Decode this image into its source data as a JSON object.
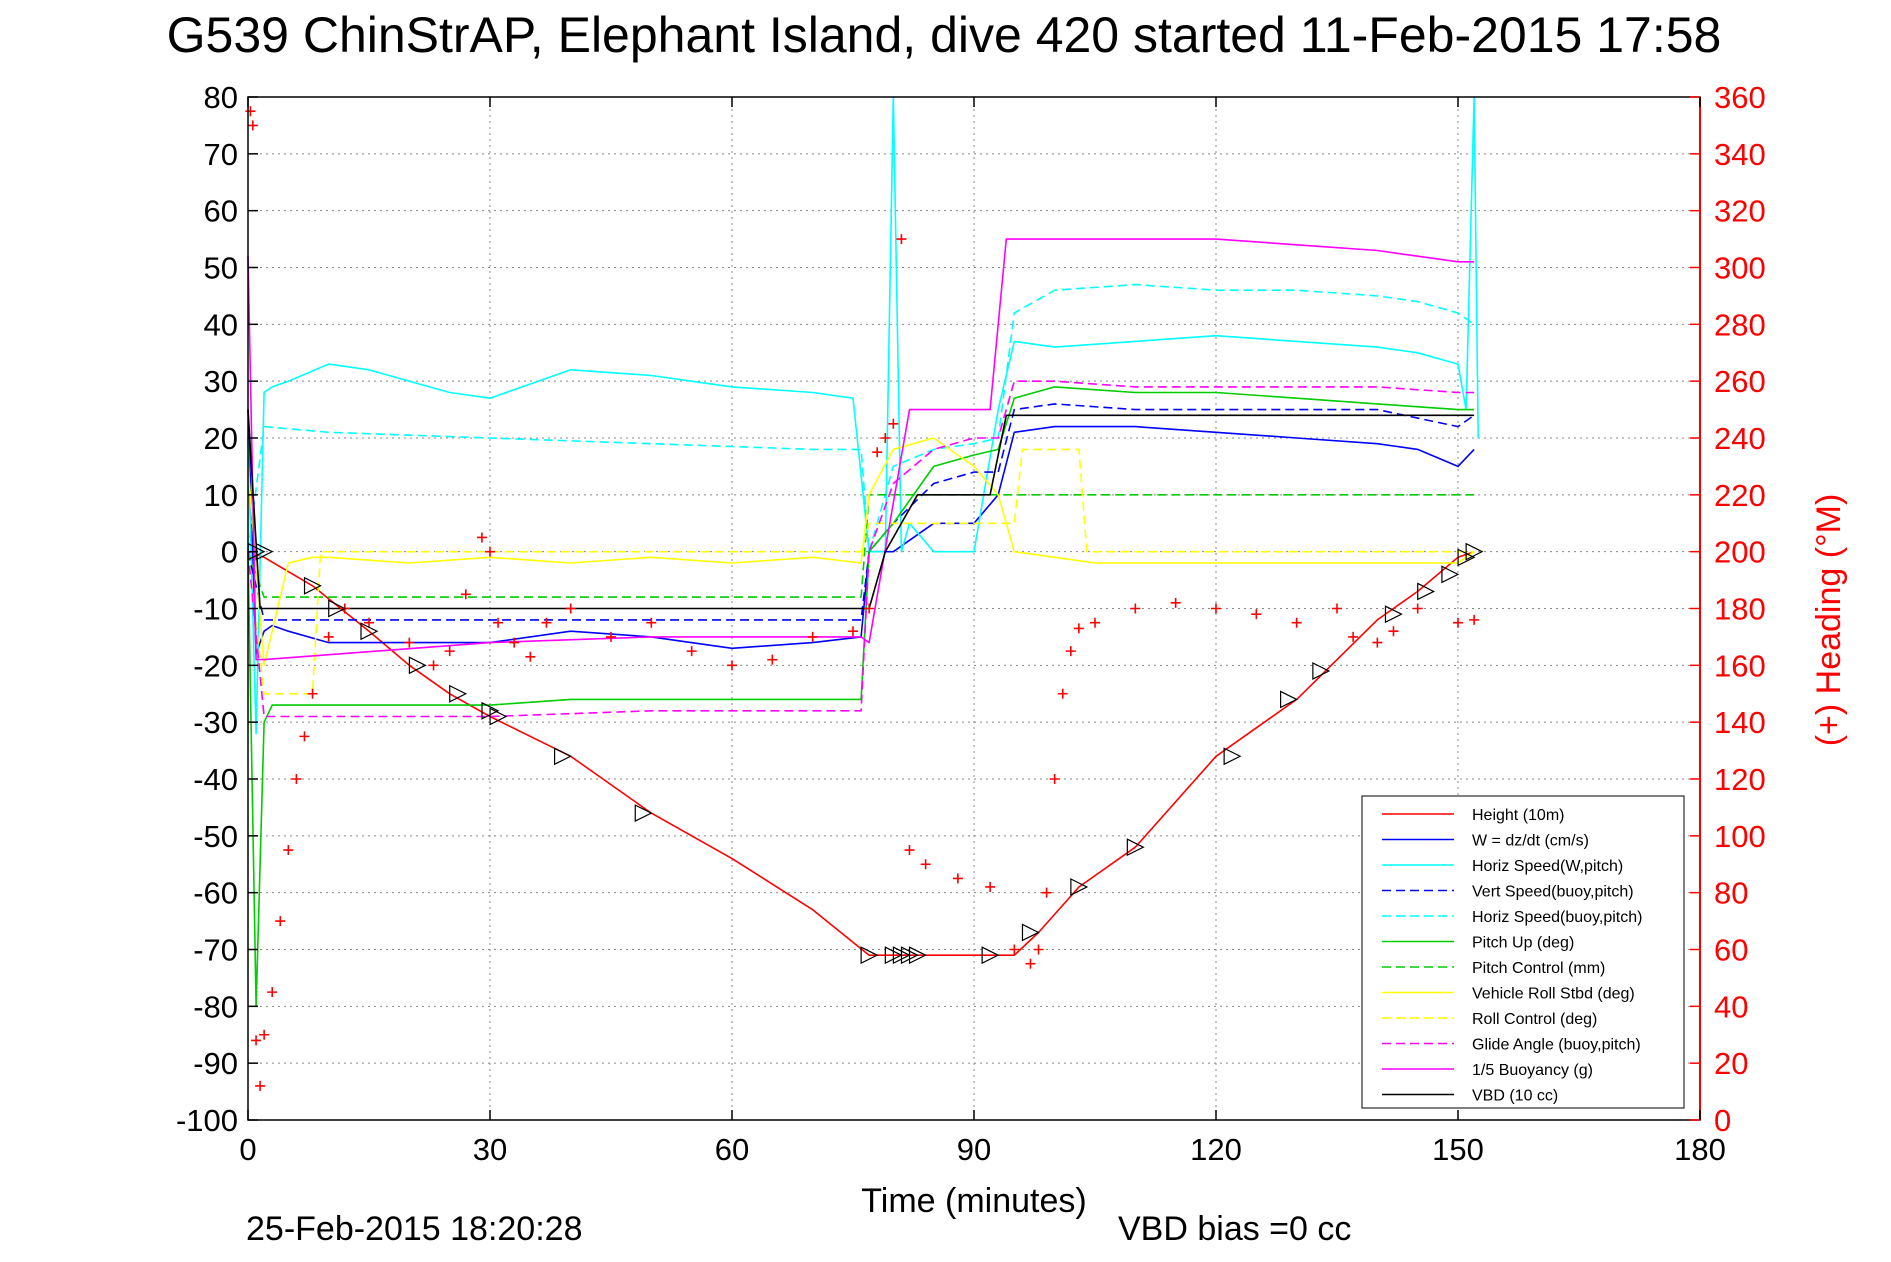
{
  "chart_data": {
    "type": "line",
    "title": "G539 ChinStrAP, Elephant Island, dive 420 started 11-Feb-2015 17:58",
    "xlabel": "Time (minutes)",
    "ylabel": "",
    "y2label": "(+) Heading (°M)",
    "xlim": [
      0,
      180
    ],
    "ylim": [
      -100,
      80
    ],
    "y2lim": [
      0,
      360
    ],
    "xticks": [
      "0",
      "30",
      "60",
      "90",
      "120",
      "150",
      "180"
    ],
    "yticks": [
      "80",
      "70",
      "60",
      "50",
      "40",
      "30",
      "20",
      "10",
      "0",
      "-10",
      "-20",
      "-30",
      "-40",
      "-50",
      "-60",
      "-70",
      "-80",
      "-90",
      "-100"
    ],
    "y2ticks": [
      "360",
      "340",
      "320",
      "300",
      "280",
      "260",
      "240",
      "220",
      "200",
      "180",
      "160",
      "140",
      "120",
      "100",
      "80",
      "60",
      "40",
      "20",
      "0"
    ],
    "grid": true,
    "legend_position": "lower-right",
    "footer_date": "25-Feb-2015 18:20:28",
    "footer_note": "VBD bias =0 cc",
    "series": [
      {
        "name": "Height (10m)",
        "color": "#ff0000",
        "style": "solid",
        "x": [
          0,
          2,
          8,
          15,
          20,
          25,
          30,
          40,
          50,
          60,
          70,
          77,
          82,
          86,
          90,
          93,
          95,
          98,
          103,
          110,
          120,
          130,
          140,
          145,
          150,
          152
        ],
        "y": [
          0,
          -1,
          -6,
          -14,
          -20,
          -25,
          -29,
          -36,
          -46,
          -54,
          -63,
          -71,
          -71,
          -71,
          -71,
          -71,
          -71,
          -67,
          -59,
          -52,
          -36,
          -26,
          -12,
          -7,
          -1,
          0
        ]
      },
      {
        "name": "W = dz/dt (cm/s)",
        "color": "#0000ff",
        "style": "solid",
        "x": [
          0,
          1,
          2,
          3,
          5,
          10,
          20,
          30,
          40,
          50,
          60,
          70,
          76,
          77,
          80,
          85,
          90,
          93,
          95,
          100,
          110,
          120,
          130,
          140,
          145,
          150,
          152
        ],
        "y": [
          25,
          -18,
          -14,
          -13,
          -14,
          -16,
          -16,
          -16,
          -14,
          -15,
          -17,
          -16,
          -15,
          0,
          0,
          5,
          5,
          10,
          21,
          22,
          22,
          21,
          20,
          19,
          18,
          15,
          18
        ]
      },
      {
        "name": "Horiz Speed(W,pitch)",
        "color": "#00ffff",
        "style": "solid",
        "x": [
          0,
          1,
          2,
          3,
          5,
          10,
          15,
          20,
          25,
          30,
          40,
          50,
          60,
          70,
          75,
          77,
          79,
          80,
          81,
          82,
          85,
          90,
          93,
          95,
          100,
          110,
          120,
          130,
          140,
          145,
          150,
          151,
          152,
          152.5
        ],
        "y": [
          20,
          -32,
          28,
          29,
          30,
          33,
          32,
          30,
          28,
          27,
          32,
          31,
          29,
          28,
          27,
          0,
          0,
          80,
          0,
          5,
          0,
          0,
          25,
          37,
          36,
          37,
          38,
          37,
          36,
          35,
          33,
          25,
          80,
          20
        ]
      },
      {
        "name": "Vert Speed(buoy,pitch)",
        "color": "#0000ff",
        "style": "dashed",
        "x": [
          0,
          2,
          10,
          30,
          50,
          70,
          76,
          77,
          80,
          85,
          90,
          93,
          95,
          100,
          110,
          120,
          130,
          140,
          150,
          152
        ],
        "y": [
          0,
          -12,
          -12,
          -12,
          -12,
          -12,
          -12,
          0,
          5,
          12,
          14,
          14,
          25,
          26,
          25,
          25,
          25,
          25,
          22,
          24
        ]
      },
      {
        "name": "Horiz Speed(buoy,pitch)",
        "color": "#00ffff",
        "style": "dashed",
        "x": [
          0,
          2,
          10,
          30,
          50,
          70,
          76,
          77,
          80,
          85,
          90,
          93,
          95,
          100,
          110,
          120,
          130,
          140,
          145,
          150,
          152
        ],
        "y": [
          0,
          22,
          21,
          20,
          19,
          18,
          18,
          0,
          15,
          18,
          19,
          20,
          42,
          46,
          47,
          46,
          46,
          45,
          44,
          42,
          40
        ]
      },
      {
        "name": "Pitch Up (deg)",
        "color": "#00cc00",
        "style": "solid",
        "x": [
          0,
          1,
          2,
          3,
          5,
          10,
          20,
          30,
          40,
          50,
          60,
          70,
          76,
          77,
          80,
          85,
          90,
          93,
          95,
          100,
          110,
          120,
          130,
          140,
          150,
          152
        ],
        "y": [
          0,
          -80,
          -30,
          -27,
          -27,
          -27,
          -27,
          -27,
          -26,
          -26,
          -26,
          -26,
          -26,
          0,
          5,
          15,
          17,
          18,
          27,
          29,
          28,
          28,
          27,
          26,
          25,
          25
        ]
      },
      {
        "name": "Pitch Control (mm)",
        "color": "#00cc00",
        "style": "dashed",
        "x": [
          0,
          2,
          76,
          77,
          95,
          152
        ],
        "y": [
          0,
          -8,
          -8,
          10,
          10,
          10
        ]
      },
      {
        "name": "Vehicle Roll Stbd (deg)",
        "color": "#ffff00",
        "style": "solid",
        "x": [
          0,
          2,
          5,
          8,
          10,
          20,
          30,
          40,
          50,
          60,
          70,
          76,
          77,
          80,
          85,
          90,
          93,
          95,
          100,
          105,
          110,
          120,
          130,
          140,
          150,
          152
        ],
        "y": [
          15,
          -20,
          -2,
          -1,
          -1,
          -2,
          -1,
          -2,
          -1,
          -2,
          -1,
          -2,
          10,
          18,
          20,
          15,
          10,
          0,
          -1,
          -2,
          -2,
          -2,
          -2,
          -2,
          -2,
          0
        ]
      },
      {
        "name": "Roll Control (deg)",
        "color": "#ffff00",
        "style": "dashed",
        "x": [
          0,
          2,
          8,
          9,
          10,
          30,
          50,
          76,
          77,
          95,
          96,
          103,
          104,
          152
        ],
        "y": [
          0,
          -25,
          -25,
          0,
          0,
          0,
          0,
          0,
          5,
          5,
          18,
          18,
          0,
          0
        ]
      },
      {
        "name": "Glide Angle (buoy,pitch)",
        "color": "#ff00ff",
        "style": "dashed",
        "x": [
          0,
          2,
          10,
          30,
          50,
          70,
          76,
          77,
          80,
          85,
          90,
          93,
          95,
          100,
          110,
          120,
          130,
          140,
          150,
          152
        ],
        "y": [
          0,
          -29,
          -29,
          -29,
          -28,
          -28,
          -28,
          0,
          12,
          18,
          20,
          20,
          30,
          30,
          29,
          29,
          29,
          29,
          28,
          28
        ]
      },
      {
        "name": "1/5 Buoyancy (g)",
        "color": "#ff00ff",
        "style": "solid",
        "x": [
          0,
          1,
          2,
          30,
          50,
          76,
          77,
          82,
          92,
          94,
          100,
          110,
          120,
          130,
          140,
          150,
          152
        ],
        "y": [
          52,
          -19,
          -19,
          -16,
          -15,
          -15,
          -16,
          25,
          25,
          55,
          55,
          55,
          55,
          54,
          53,
          51,
          51
        ]
      },
      {
        "name": "VBD (10 cc)",
        "color": "#000000",
        "style": "solid",
        "x": [
          0,
          1.5,
          2,
          76,
          77,
          79,
          83,
          92,
          94,
          152
        ],
        "y": [
          25,
          -10,
          -10,
          -10,
          -10,
          0,
          10,
          10,
          24,
          24
        ]
      }
    ],
    "heading": {
      "name": "(+) Heading (°M)",
      "color": "#ff0000",
      "marker": "+",
      "axis": "right",
      "x": [
        0.3,
        0.6,
        1,
        1.5,
        2,
        3,
        4,
        5,
        6,
        7,
        8,
        10,
        12,
        15,
        20,
        23,
        25,
        27,
        29,
        30,
        31,
        33,
        35,
        37,
        40,
        45,
        50,
        55,
        60,
        65,
        70,
        75,
        77,
        78,
        79,
        80,
        81,
        82,
        84,
        88,
        92,
        95,
        97,
        98,
        99,
        100,
        101,
        102,
        103,
        105,
        110,
        115,
        120,
        125,
        130,
        135,
        137,
        140,
        142,
        145,
        150,
        152
      ],
      "y": [
        355,
        350,
        28,
        12,
        30,
        45,
        70,
        95,
        120,
        135,
        150,
        170,
        180,
        175,
        168,
        160,
        165,
        185,
        205,
        200,
        175,
        168,
        163,
        175,
        180,
        170,
        175,
        165,
        160,
        162,
        170,
        172,
        180,
        235,
        240,
        245,
        310,
        95,
        90,
        85,
        82,
        60,
        55,
        60,
        80,
        120,
        150,
        165,
        173,
        175,
        180,
        182,
        180,
        178,
        175,
        180,
        170,
        168,
        172,
        180,
        175,
        176
      ]
    },
    "height_markers": {
      "marker": "triangle",
      "color": "#000000",
      "x": [
        1,
        2,
        8,
        11,
        15,
        21,
        26,
        30,
        31,
        39,
        49,
        77,
        80,
        81,
        82,
        83,
        92,
        97,
        103,
        110,
        122,
        129,
        133,
        142,
        146,
        149,
        151,
        152
      ],
      "y": [
        0,
        0,
        -6,
        -10,
        -14,
        -20,
        -25,
        -28,
        -29,
        -36,
        -46,
        -71,
        -71,
        -71,
        -71,
        -71,
        -71,
        -67,
        -59,
        -52,
        -36,
        -26,
        -21,
        -11,
        -7,
        -4,
        -1,
        0
      ]
    }
  }
}
